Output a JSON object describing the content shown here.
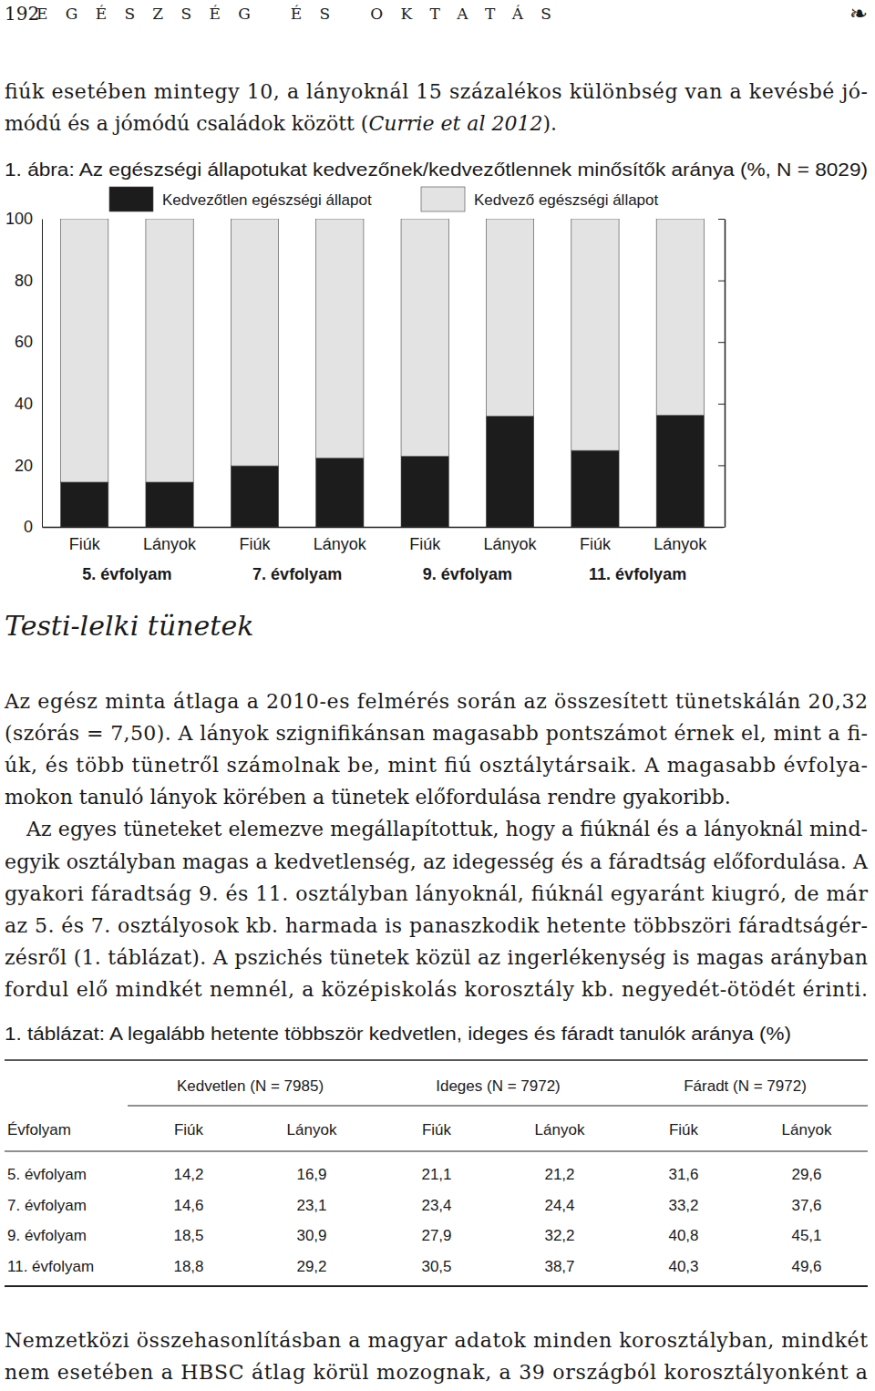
{
  "header": {
    "page_number": "192",
    "running_title": "EGÉSZSÉG ÉS OKTATÁS",
    "ornament": "❧"
  },
  "intro": [
    [
      "fiúk esetében mintegy 10, a lányoknál 15 százalékos különbség van a kevésbé jó-",
      [
        "módú és a jómódú családok között (",
        "Currie et al 2012",
        ")."
      ]
    ]
  ],
  "chart_data": {
    "type": "bar",
    "stacked": true,
    "title": "1. ábra: Az egészségi állapotukat kedvezőnek/kedvezőtlennek minősítők aránya (%, N = 8029)",
    "categories": [
      "Fiúk",
      "Lányok",
      "Fiúk",
      "Lányok",
      "Fiúk",
      "Lányok",
      "Fiúk",
      "Lányok"
    ],
    "groups": [
      "5. évfolyam",
      "7. évfolyam",
      "9. évfolyam",
      "11. évfolyam"
    ],
    "series": [
      {
        "name": "Kedvezőtlen egészségi állapot",
        "color": "#1c1c1c",
        "values": [
          14.5,
          14.5,
          19.8,
          22.3,
          22.9,
          35.9,
          24.8,
          36.2
        ]
      },
      {
        "name": "Kedvező egészségi állapot",
        "color": "#e3e3e3",
        "values": [
          85.5,
          85.5,
          80.2,
          77.7,
          77.1,
          64.1,
          75.2,
          63.8
        ]
      }
    ],
    "ylim": [
      0,
      100
    ],
    "yticks": [
      0,
      20,
      40,
      60,
      80,
      100
    ],
    "legend": "top"
  },
  "section_heading": "Testi-lelki tünetek",
  "body": [
    [
      "Az egész minta átlaga a 2010-es felmérés során az összesített tünetskálán 20,32",
      "(szórás = 7,50). A lányok szignifikánsan magasabb pontszámot érnek el, mint a fi-",
      "úk, és több tünetről számolnak be, mint fiú osztálytársaik. A magasabb évfolya-",
      "mokon tanuló lányok körében a tünetek előfordulása rendre gyakoribb."
    ],
    [
      "Az egyes tüneteket elemezve megállapítottuk, hogy a fiúknál és a lányoknál mind-",
      "egyik osztályban magas a kedvetlenség, az idegesség és a fáradtság előfordulása. A",
      "gyakori fáradtság 9. és 11. osztályban lányoknál, fiúknál egyaránt kiugró, de már",
      "az 5. és 7. osztályosok kb. harmada is panaszkodik hetente többszöri fáradtságér-",
      "zésről (1. táblázat). A pszichés tünetek közül az ingerlékenység is magas arányban",
      "fordul elő mindkét nemnél, a középiskolás korosztály kb. negyedét-ötödét érinti."
    ]
  ],
  "table": {
    "title": "1. táblázat: A legalább hetente többször kedvetlen, ideges és fáradt tanulók aránya (%)",
    "column_groups": [
      "Kedvetlen (N = 7985)",
      "Ideges (N = 7972)",
      "Fáradt (N = 7972)"
    ],
    "columns": [
      "Évfolyam",
      "Fiúk",
      "Lányok",
      "Fiúk",
      "Lányok",
      "Fiúk",
      "Lányok"
    ],
    "rows": [
      [
        "5. évfolyam",
        "14,2",
        "16,9",
        "21,1",
        "21,2",
        "31,6",
        "29,6"
      ],
      [
        "7. évfolyam",
        "14,6",
        "23,1",
        "23,4",
        "24,4",
        "33,2",
        "37,6"
      ],
      [
        "9. évfolyam",
        "18,5",
        "30,9",
        "27,9",
        "32,2",
        "40,8",
        "45,1"
      ],
      [
        "11. évfolyam",
        "18,8",
        "29,2",
        "30,5",
        "38,7",
        "40,3",
        "49,6"
      ]
    ]
  },
  "closing": [
    [
      "Nemzetközi összehasonlításban a magyar adatok minden korosztályban, mindkét",
      "nem esetében a HBSC átlag körül mozognak, a 39 országból korosztályonként a"
    ]
  ]
}
